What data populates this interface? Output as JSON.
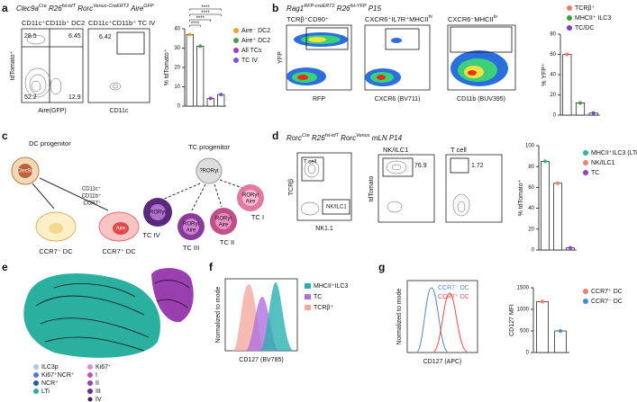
{
  "figure": {
    "a": {
      "label": "a",
      "title": [
        "Clec9a",
        "Cre",
        " R26",
        "fsl-tdT",
        " Rorc",
        "Venus-CreERT2",
        " Aire",
        "GFP"
      ],
      "plot_titles": [
        "CD11c⁺CD11b⁺ DC2",
        "CD11c⁺CD11b⁺ TC IV"
      ],
      "y_axis": "tdTomato⁺",
      "x_axes": [
        "Aire(GFP)",
        "CD11c"
      ],
      "gates": [
        28.5,
        6.45,
        52.2,
        12.9,
        6.42
      ]
    },
    "b": {
      "label": "b",
      "title": [
        "Rag1",
        "RFP-creERT2",
        " R26",
        "fsl-YFP",
        " P15"
      ],
      "plot_titles": [
        [
          "TCRβ⁺CD90⁺"
        ],
        [
          "CXCR6⁺IL7R⁺MHCII",
          "hi"
        ],
        [
          "CXCR6⁻MHCII",
          "lo"
        ]
      ],
      "y_axis": "YFP",
      "x_axes": [
        "RFP",
        "CXCR6 (BV711)",
        "CD11b (BUV395)"
      ]
    },
    "c": {
      "label": "c",
      "dc_progenitor": "DC progenitor",
      "clec9a": "Clec9a",
      "markers": [
        "CD11c⁺",
        "CD11b⁺",
        "CCR7⁺"
      ],
      "aire": "Aire",
      "dc_cells": [
        "CCR7⁻ DC",
        "CCR7⁺ DC"
      ],
      "tc_progenitor": "TC progenitor",
      "tc_progenitor_marker": "?RORγt",
      "tc_cells": [
        {
          "name": "TC IV",
          "markers": [
            "RORγt"
          ]
        },
        {
          "name": "TC III",
          "markers": [
            "RORγt",
            "Aire"
          ]
        },
        {
          "name": "TC II",
          "markers": [
            "RORγt",
            "Aire"
          ]
        },
        {
          "name": "TC I",
          "markers": [
            "RORγt",
            "Aire"
          ]
        }
      ]
    },
    "d": {
      "label": "d",
      "title": [
        "Rorc",
        "Cre",
        " R26",
        "fsl-tdT",
        " Rorc",
        "Venus",
        " mLN P14"
      ],
      "gate_labels": [
        "T cell",
        "NK/ILC1"
      ],
      "plot_titles": [
        "NK/ILC1",
        "T cell"
      ],
      "y_axes": [
        "TCRβ",
        "tdTomato"
      ],
      "x_axis": "NK1.1",
      "gates": [
        76.9,
        1.72
      ]
    },
    "e": {
      "label": "e",
      "legend_ilc": [
        "ILC3p",
        "Ki67⁺NCR⁺",
        "NCR⁺",
        "LTi"
      ],
      "legend_tc": [
        "Ki67⁺",
        "I",
        "II",
        "III",
        "IV"
      ]
    },
    "f": {
      "label": "f",
      "y_axis": "Normalized to mode",
      "x_axis": "CD127 (BV785)",
      "legend": [
        "MHCII⁺ILC3",
        "TC",
        "TCRβ⁺"
      ]
    },
    "g": {
      "label": "g",
      "y_axis": "Normalized to mode",
      "x_axis": "CD127 (APC)",
      "legend": [
        "CCR7⁻ DC",
        "CCR7⁺ DC"
      ]
    }
  },
  "chart_data": [
    {
      "type": "bar",
      "y_label": "% tdTomato⁺",
      "categories": [
        "Aire⁻ DC2",
        "Aire⁺ DC2",
        "All TCs",
        "TC IV"
      ],
      "values": [
        37,
        31,
        4,
        6
      ],
      "colors": [
        "#f0a030",
        "#4aa04a",
        "#9a3fbf",
        "#7b55d6"
      ],
      "ylim": [
        0,
        40
      ],
      "yticks": [
        0,
        10,
        20,
        30,
        40
      ],
      "significance": [
        "****",
        "****",
        "****",
        "****"
      ]
    },
    {
      "type": "bar",
      "y_label": "% YFP⁺",
      "categories": [
        "TCRβ⁺",
        "MHCII⁺ ILC3",
        "TC/DC"
      ],
      "values": [
        60,
        12,
        2
      ],
      "colors": [
        "#f07a6a",
        "#3aa03a",
        "#7a3fc2"
      ],
      "ylim": [
        0,
        80
      ],
      "yticks": [
        0,
        20,
        40,
        60,
        80
      ]
    },
    {
      "type": "bar",
      "y_label": "% tdTomato⁺",
      "categories": [
        "MHCII⁺ILC3 (LTi)",
        "NK/ILC1",
        "TC"
      ],
      "values": [
        85,
        64,
        2
      ],
      "colors": [
        "#2bb0b0",
        "#f08070",
        "#8a3fcf"
      ],
      "ylim": [
        0,
        100
      ],
      "yticks": [
        0,
        20,
        40,
        60,
        80,
        100
      ]
    },
    {
      "type": "bar",
      "y_label": "CD127 MFI",
      "categories": [
        "CCR7⁺ DC",
        "CCR7⁻ DC"
      ],
      "values": [
        1180,
        500
      ],
      "colors": [
        "#f07a6a",
        "#4a88d0"
      ],
      "ylim": [
        0,
        1500
      ],
      "yticks": [
        0,
        500,
        1000,
        1500
      ]
    }
  ]
}
